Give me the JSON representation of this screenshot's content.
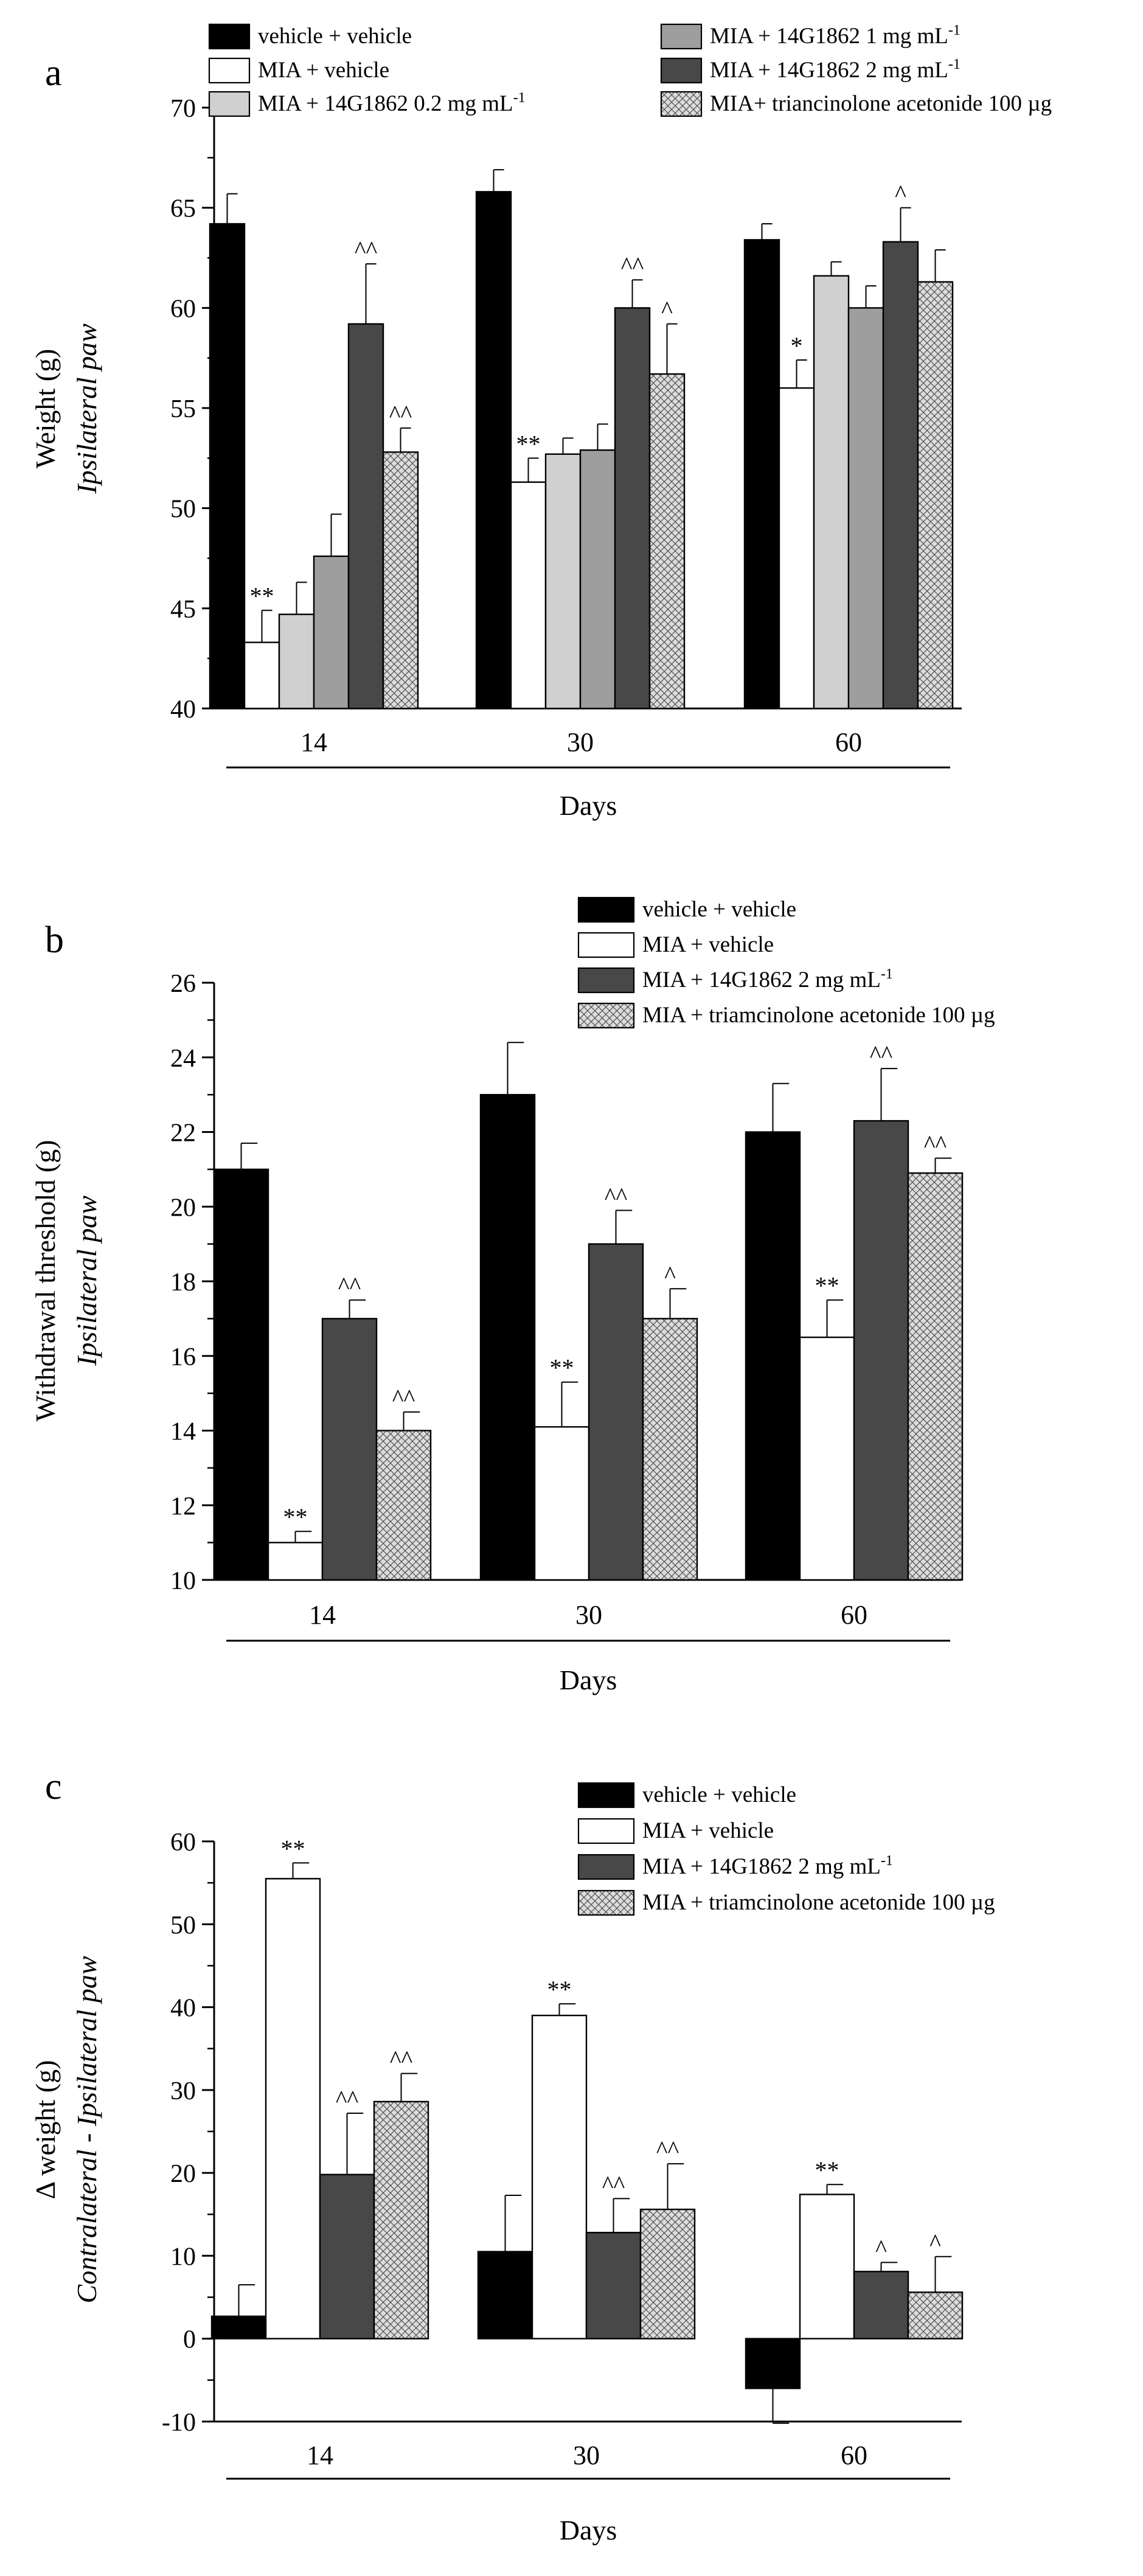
{
  "colors": {
    "vv": "#000000",
    "miav": "#ffffff",
    "d02": "#d0d0d0",
    "d1": "#9e9e9e",
    "d2": "#484848",
    "ta_bg": "#dcdcdc",
    "ta_line": "#555555"
  },
  "chart_data": [
    {
      "type": "bar",
      "panel_label": "a",
      "xlabel": "Days",
      "ylabel_lines": [
        "Weight (g)",
        "Ipsilateral paw"
      ],
      "ylim": [
        40,
        70
      ],
      "yticks": [
        40,
        45,
        50,
        55,
        60,
        65,
        70
      ],
      "categories": [
        "14",
        "30",
        "60"
      ],
      "legend": [
        {
          "label": "vehicle + vehicle",
          "sup": "",
          "style": "vv"
        },
        {
          "label": "MIA + vehicle",
          "sup": "",
          "style": "miav"
        },
        {
          "label": "MIA + 14G1862 0.2 mg mL",
          "sup": "-1",
          "style": "d02"
        },
        {
          "label": "MIA + 14G1862 1 mg mL",
          "sup": "-1",
          "style": "d1"
        },
        {
          "label": "MIA + 14G1862 2 mg mL",
          "sup": "-1",
          "style": "d2"
        },
        {
          "label": "MIA+ triancinolone acetonide 100 µg",
          "sup": "",
          "style": "ta"
        }
      ],
      "series": [
        {
          "name": "vehicle + vehicle",
          "style": "vv",
          "values": [
            64.2,
            65.8,
            63.4
          ],
          "errors": [
            1.5,
            1.1,
            0.8
          ],
          "annotations": [
            "",
            "",
            ""
          ]
        },
        {
          "name": "MIA + vehicle",
          "style": "miav",
          "values": [
            43.3,
            51.3,
            56.0
          ],
          "errors": [
            1.6,
            1.2,
            1.4
          ],
          "annotations": [
            "**",
            "**",
            "*"
          ]
        },
        {
          "name": "MIA + 14G1862 0.2 mg mL-1",
          "style": "d02",
          "values": [
            44.7,
            52.7,
            61.6
          ],
          "errors": [
            1.6,
            0.8,
            0.7
          ],
          "annotations": [
            "",
            "",
            ""
          ]
        },
        {
          "name": "MIA + 14G1862 1 mg mL-1",
          "style": "d1",
          "values": [
            47.6,
            52.9,
            60.0
          ],
          "errors": [
            2.1,
            1.3,
            1.1
          ],
          "annotations": [
            "",
            "",
            ""
          ]
        },
        {
          "name": "MIA + 14G1862 2 mg mL-1",
          "style": "d2",
          "values": [
            59.2,
            60.0,
            63.3
          ],
          "errors": [
            3.0,
            1.4,
            1.7
          ],
          "annotations": [
            "^^",
            "^^",
            "^"
          ]
        },
        {
          "name": "MIA+ triancinolone acetonide 100 µg",
          "style": "ta",
          "values": [
            52.8,
            56.7,
            61.3
          ],
          "errors": [
            1.2,
            2.5,
            1.6
          ],
          "annotations": [
            "^^",
            "^",
            ""
          ]
        }
      ]
    },
    {
      "type": "bar",
      "panel_label": "b",
      "xlabel": "Days",
      "ylabel_lines": [
        "Withdrawal threshold (g)",
        "Ipsilateral paw"
      ],
      "ylim": [
        10,
        26
      ],
      "yticks": [
        10,
        12,
        14,
        16,
        18,
        20,
        22,
        24,
        26
      ],
      "categories": [
        "14",
        "30",
        "60"
      ],
      "legend": [
        {
          "label": "vehicle + vehicle",
          "sup": "",
          "style": "vv"
        },
        {
          "label": "MIA + vehicle",
          "sup": "",
          "style": "miav"
        },
        {
          "label": "MIA + 14G1862 2 mg mL",
          "sup": "-1",
          "style": "d2"
        },
        {
          "label": "MIA + triamcinolone acetonide 100 µg",
          "sup": "",
          "style": "ta"
        }
      ],
      "series": [
        {
          "name": "vehicle + vehicle",
          "style": "vv",
          "values": [
            21.0,
            23.0,
            22.0
          ],
          "errors": [
            0.7,
            1.4,
            1.3
          ],
          "annotations": [
            "",
            "",
            ""
          ]
        },
        {
          "name": "MIA + vehicle",
          "style": "miav",
          "values": [
            11.0,
            14.1,
            16.5
          ],
          "errors": [
            0.3,
            1.2,
            1.0
          ],
          "annotations": [
            "**",
            "**",
            "**"
          ]
        },
        {
          "name": "MIA + 14G1862 2 mg mL-1",
          "style": "d2",
          "values": [
            17.0,
            19.0,
            22.3
          ],
          "errors": [
            0.5,
            0.9,
            1.4
          ],
          "annotations": [
            "^^",
            "^^",
            "^^"
          ]
        },
        {
          "name": "MIA + triamcinolone acetonide 100 µg",
          "style": "ta",
          "values": [
            14.0,
            17.0,
            20.9
          ],
          "errors": [
            0.5,
            0.8,
            0.4
          ],
          "annotations": [
            "^^",
            "^",
            "^^"
          ]
        }
      ]
    },
    {
      "type": "bar",
      "panel_label": "c",
      "xlabel": "Days",
      "ylabel_lines": [
        "Δ weight (g)",
        "Contralateral - Ipsilateral paw"
      ],
      "ylim": [
        -10,
        60
      ],
      "yticks": [
        -10,
        0,
        10,
        20,
        30,
        40,
        50,
        60
      ],
      "categories": [
        "14",
        "30",
        "60"
      ],
      "legend": [
        {
          "label": "vehicle + vehicle",
          "sup": "",
          "style": "vv"
        },
        {
          "label": "MIA + vehicle",
          "sup": "",
          "style": "miav"
        },
        {
          "label": "MIA + 14G1862 2 mg mL",
          "sup": "-1",
          "style": "d2"
        },
        {
          "label": "MIA + triamcinolone acetonide 100 µg",
          "sup": "",
          "style": "ta"
        }
      ],
      "series": [
        {
          "name": "vehicle + vehicle",
          "style": "vv",
          "values": [
            2.7,
            10.5,
            -6.0
          ],
          "errors": [
            3.8,
            6.8,
            4.2
          ],
          "annotations": [
            "",
            "",
            ""
          ]
        },
        {
          "name": "MIA + vehicle",
          "style": "miav",
          "values": [
            55.5,
            39.0,
            17.4
          ],
          "errors": [
            1.9,
            1.4,
            1.2
          ],
          "annotations": [
            "**",
            "**",
            "**"
          ]
        },
        {
          "name": "MIA + 14G1862 2 mg mL-1",
          "style": "d2",
          "values": [
            19.8,
            12.8,
            8.1
          ],
          "errors": [
            7.4,
            4.1,
            1.1
          ],
          "annotations": [
            "^^",
            "^^",
            "^"
          ]
        },
        {
          "name": "MIA + triamcinolone acetonide 100 µg",
          "style": "ta",
          "values": [
            28.6,
            15.6,
            5.6
          ],
          "errors": [
            3.4,
            5.5,
            4.3
          ],
          "annotations": [
            "^^",
            "^^",
            "^"
          ]
        }
      ]
    }
  ]
}
